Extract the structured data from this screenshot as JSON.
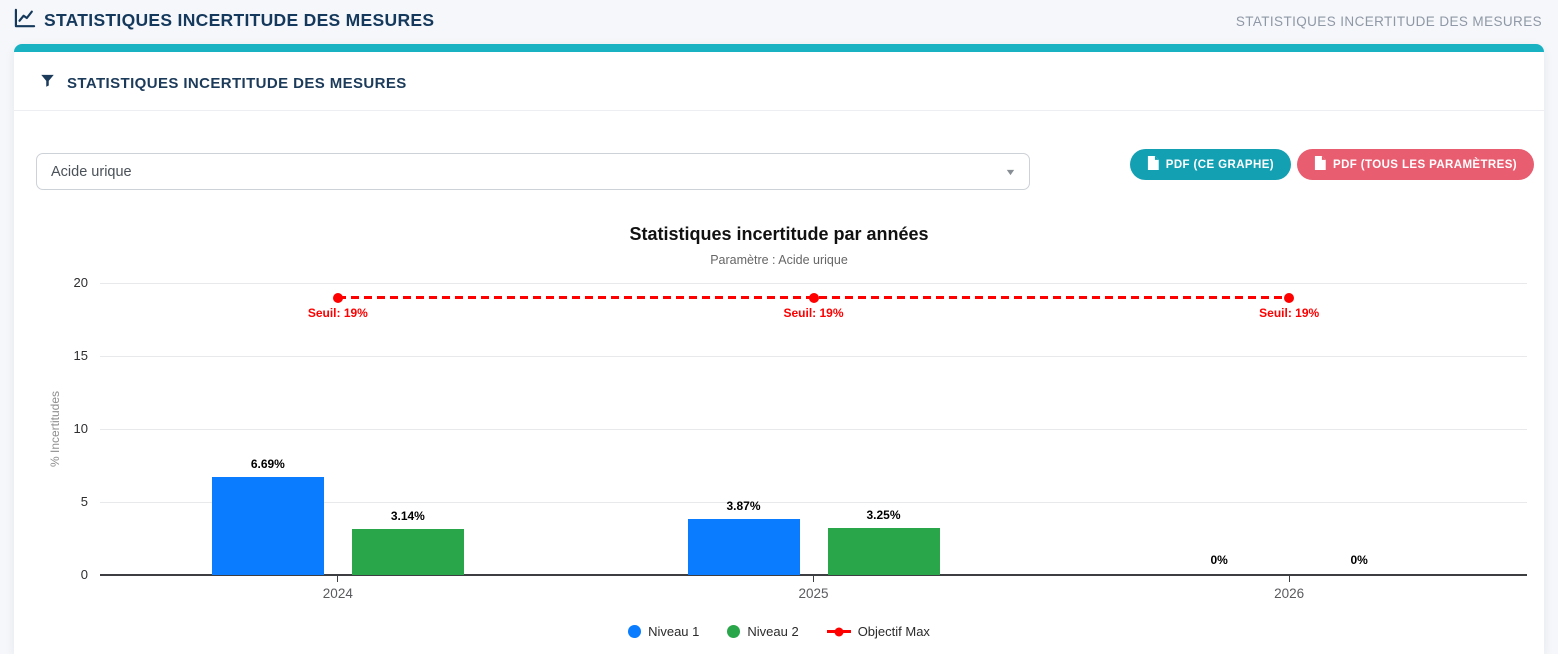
{
  "header": {
    "title": "STATISTIQUES INCERTITUDE DES MESURES",
    "breadcrumb": "STATISTIQUES INCERTITUDE DES MESURES"
  },
  "card": {
    "title": "STATISTIQUES INCERTITUDE DES MESURES"
  },
  "filter": {
    "parameter_select": {
      "value": "Acide urique"
    }
  },
  "toolbar": {
    "pdf_graph_label": "PDF (CE GRAPHE)",
    "pdf_all_label": "PDF (TOUS LES PARAMÈTRES)"
  },
  "colors": {
    "accent_teal": "#18b2c3",
    "button_teal": "#13a0b3",
    "button_red": "#e85d6f",
    "navy_text": "#15395c",
    "bar_blue": "#0a7cff",
    "bar_green": "#2aa64a",
    "threshold_red": "#fe0000"
  },
  "chart_data": {
    "type": "bar",
    "title": "Statistiques incertitude par années",
    "subtitle": "Paramètre : Acide urique",
    "xlabel": "",
    "ylabel": "% Incertitudes",
    "categories": [
      "2024",
      "2025",
      "2026"
    ],
    "series": [
      {
        "name": "Niveau 1",
        "color": "#0a7cff",
        "values": [
          6.69,
          3.87,
          0
        ],
        "labels": [
          "6.69%",
          "3.87%",
          "0%"
        ]
      },
      {
        "name": "Niveau 2",
        "color": "#2aa64a",
        "values": [
          3.14,
          3.25,
          0
        ],
        "labels": [
          "3.14%",
          "3.25%",
          "0%"
        ]
      }
    ],
    "threshold": {
      "name": "Objectif Max",
      "value": 19,
      "label": "Seuil: 19%",
      "color": "#fe0000"
    },
    "ylim": [
      0,
      20
    ],
    "yticks": [
      0,
      5,
      10,
      15,
      20
    ],
    "grid": true,
    "legend_position": "bottom"
  }
}
